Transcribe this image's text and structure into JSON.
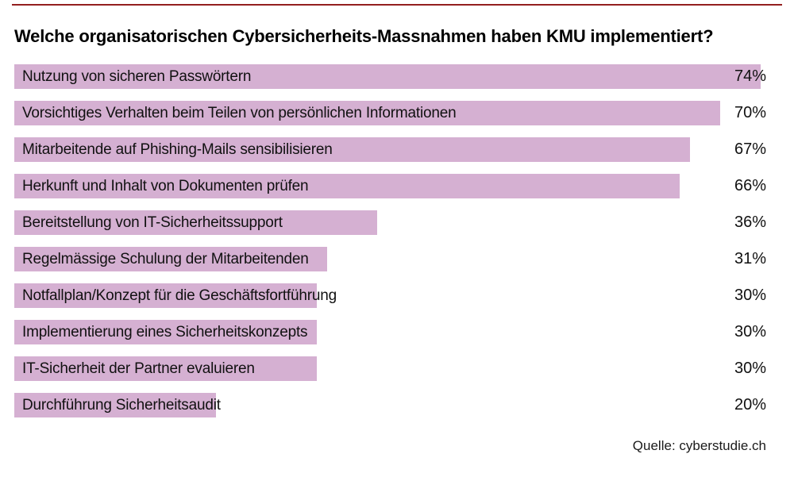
{
  "page": {
    "title": "Welche organisatorischen Cybersicherheits-Massnahmen haben KMU implementiert?",
    "source": "Quelle: cyberstudie.ch"
  },
  "colors": {
    "bar": "#d5b0d2",
    "top_rule": "#931f1f",
    "background": "#ffffff",
    "text": "#111111"
  },
  "chart_data": {
    "type": "bar",
    "orientation": "horizontal",
    "title": "Welche organisatorischen Cybersicherheits-Massnahmen haben KMU implementiert?",
    "xlabel": "",
    "ylabel": "",
    "xlim": [
      0,
      100
    ],
    "grid": false,
    "legend": false,
    "unit": "%",
    "categories": [
      "Nutzung von sicheren Passwörtern",
      "Vorsichtiges Verhalten beim Teilen von persönlichen Informationen",
      "Mitarbeitende auf Phishing-Mails sensibilisieren",
      "Herkunft und Inhalt von Dokumenten prüfen",
      "Bereitstellung von IT-Sicherheitssupport",
      "Regelmässige Schulung der Mitarbeitenden",
      "Notfallplan/Konzept für die Geschäftsfortführung",
      "Implementierung eines Sicherheitskonzepts",
      "IT-Sicherheit der Partner evaluieren",
      "Durchführung Sicherheitsaudit"
    ],
    "values": [
      74,
      70,
      67,
      66,
      36,
      31,
      30,
      30,
      30,
      20
    ],
    "pct_labels": [
      "74%",
      "70%",
      "67%",
      "66%",
      "36%",
      "31%",
      "30%",
      "30%",
      "30%",
      "20%"
    ],
    "source": "Quelle: cyberstudie.ch"
  }
}
